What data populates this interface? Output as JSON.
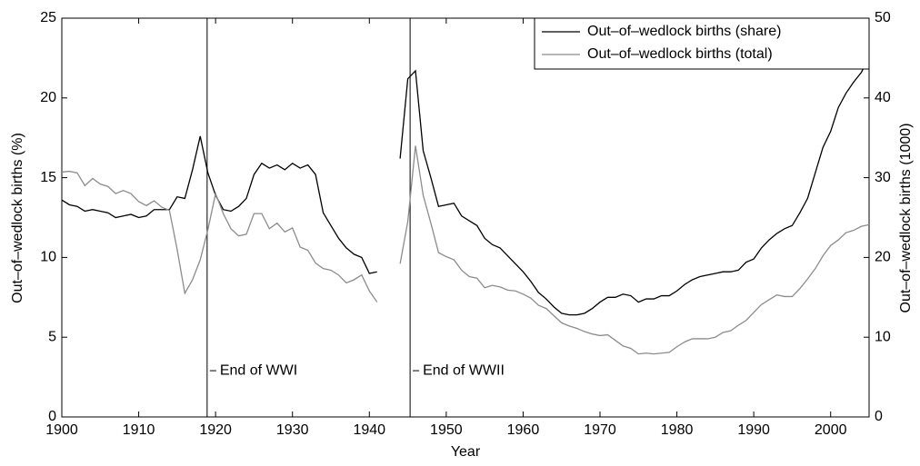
{
  "chart_data": {
    "type": "line",
    "x_label": "Year",
    "y_label": "Out–of–wedlock births (%)",
    "y2_label": "Out–of–wedlock births (1000)",
    "x": [
      1900,
      1901,
      1902,
      1903,
      1904,
      1905,
      1906,
      1907,
      1908,
      1909,
      1910,
      1911,
      1912,
      1913,
      1914,
      1915,
      1916,
      1917,
      1918,
      1919,
      1920,
      1921,
      1922,
      1923,
      1924,
      1925,
      1926,
      1927,
      1928,
      1929,
      1930,
      1931,
      1932,
      1933,
      1934,
      1935,
      1936,
      1937,
      1938,
      1939,
      1940,
      1941,
      1942,
      1943,
      1944,
      1945,
      1946,
      1947,
      1948,
      1949,
      1950,
      1951,
      1952,
      1953,
      1954,
      1955,
      1956,
      1957,
      1958,
      1959,
      1960,
      1961,
      1962,
      1963,
      1964,
      1965,
      1966,
      1967,
      1968,
      1969,
      1970,
      1971,
      1972,
      1973,
      1974,
      1975,
      1976,
      1977,
      1978,
      1979,
      1980,
      1981,
      1982,
      1983,
      1984,
      1985,
      1986,
      1987,
      1988,
      1989,
      1990,
      1991,
      1992,
      1993,
      1994,
      1995,
      1996,
      1997,
      1998,
      1999,
      2000,
      2001,
      2002,
      2003,
      2004,
      2005
    ],
    "series": [
      {
        "name": "Out–of–wedlock births (share)",
        "color": "#000000",
        "axis": "y",
        "values": [
          13.6,
          13.3,
          13.2,
          12.9,
          13.0,
          12.9,
          12.8,
          12.5,
          12.6,
          12.7,
          12.5,
          12.6,
          13.0,
          13.0,
          13.0,
          13.8,
          13.7,
          15.5,
          17.6,
          15.3,
          13.9,
          13.0,
          12.9,
          13.2,
          13.7,
          15.2,
          15.9,
          15.6,
          15.8,
          15.5,
          15.9,
          15.6,
          15.8,
          15.2,
          12.8,
          12.0,
          11.2,
          10.6,
          10.2,
          10.0,
          9.0,
          9.1,
          null,
          null,
          16.2,
          21.2,
          21.7,
          16.7,
          15.0,
          13.2,
          13.3,
          13.4,
          12.6,
          12.3,
          12.0,
          11.2,
          10.8,
          10.6,
          10.1,
          9.6,
          9.1,
          8.5,
          7.8,
          7.4,
          6.9,
          6.5,
          6.4,
          6.4,
          6.5,
          6.8,
          7.2,
          7.5,
          7.5,
          7.7,
          7.6,
          7.2,
          7.4,
          7.4,
          7.6,
          7.6,
          7.9,
          8.3,
          8.6,
          8.8,
          8.9,
          9.0,
          9.1,
          9.1,
          9.2,
          9.7,
          9.9,
          10.6,
          11.1,
          11.5,
          11.8,
          12.0,
          12.8,
          13.7,
          15.3,
          16.9,
          17.9,
          19.4,
          20.3,
          21.0,
          21.6,
          22.6
        ]
      },
      {
        "name": "Out–of–wedlock births (total)",
        "color": "#8c8c8c",
        "axis": "y2",
        "values": [
          30.7,
          30.8,
          30.6,
          29.0,
          29.9,
          29.2,
          28.9,
          28.0,
          28.4,
          28.0,
          27.0,
          26.5,
          27.1,
          26.3,
          25.9,
          21.0,
          15.5,
          17.2,
          19.7,
          23.5,
          28.0,
          25.5,
          23.6,
          22.7,
          22.9,
          25.5,
          25.5,
          23.6,
          24.3,
          23.2,
          23.7,
          21.3,
          20.9,
          19.3,
          18.6,
          18.4,
          17.8,
          16.8,
          17.2,
          17.8,
          15.8,
          14.4,
          null,
          null,
          19.2,
          24.5,
          34.0,
          27.8,
          24.3,
          20.6,
          20.1,
          19.7,
          18.4,
          17.6,
          17.4,
          16.2,
          16.5,
          16.3,
          15.9,
          15.8,
          15.4,
          14.9,
          14.0,
          13.6,
          12.7,
          11.8,
          11.4,
          11.1,
          10.7,
          10.4,
          10.2,
          10.3,
          9.6,
          8.9,
          8.6,
          7.9,
          8.0,
          7.9,
          8.0,
          8.1,
          8.8,
          9.4,
          9.8,
          9.8,
          9.8,
          10.0,
          10.6,
          10.8,
          11.5,
          12.1,
          13.1,
          14.1,
          14.7,
          15.3,
          15.1,
          15.1,
          16.1,
          17.3,
          18.6,
          20.2,
          21.5,
          22.2,
          23.1,
          23.4,
          23.9,
          24.1
        ]
      }
    ],
    "xlim": [
      1900,
      2005
    ],
    "xticks": [
      1900,
      1910,
      1920,
      1930,
      1940,
      1950,
      1960,
      1970,
      1980,
      1990,
      2000
    ],
    "ylim": [
      0,
      25
    ],
    "yticks": [
      0,
      5,
      10,
      15,
      20,
      25
    ],
    "y2lim": [
      0,
      50
    ],
    "y2ticks": [
      0,
      10,
      20,
      30,
      40,
      50
    ],
    "legend": "upper right",
    "annotations": [
      {
        "text": "End of WWI",
        "x": 1918.9,
        "y": 2.9
      },
      {
        "text": "End of WWII",
        "x": 1945.3,
        "y": 2.9
      }
    ]
  }
}
